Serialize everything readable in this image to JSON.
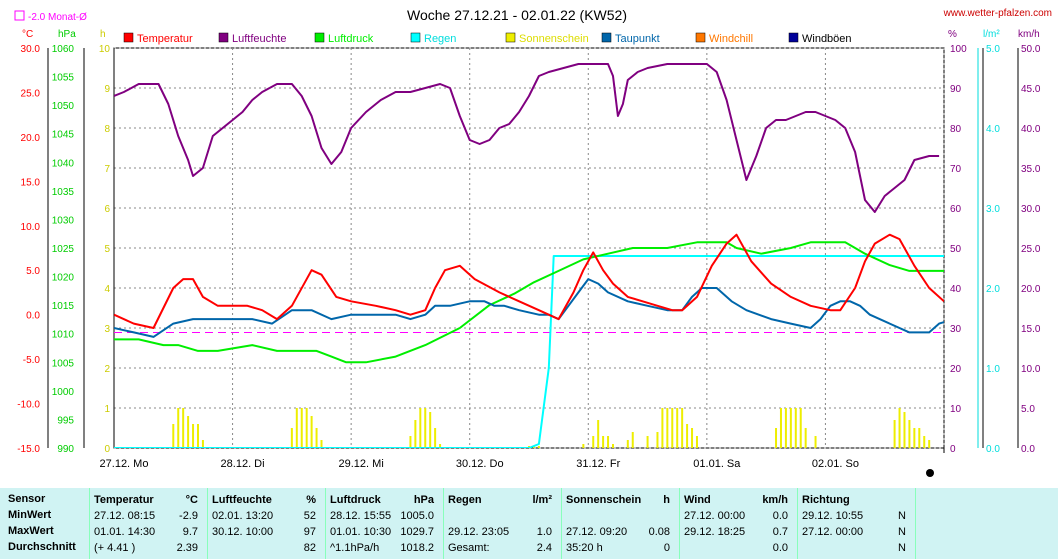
{
  "header": {
    "title": "Woche 27.12.21 - 02.01.22 (KW52)",
    "site": "www.wetter-pfalzen.com",
    "monat_label": "-2.0 Monat-Ø"
  },
  "colors": {
    "temperatur": "#ff0000",
    "luftfeuchte": "#800080",
    "luftdruck": "#00ee00",
    "regen": "#00ffff",
    "sonnenschein": "#eeee00",
    "taupunkt": "#0066aa",
    "windchill": "#ff7700",
    "windboeen": "#000099",
    "monat": "#ff00ff"
  },
  "chart_data": {
    "type": "line",
    "title": "Woche 27.12.21 - 02.01.22 (KW52)",
    "x_ticks": [
      "27.12. Mo",
      "28.12. Di",
      "29.12. Mi",
      "30.12. Do",
      "31.12. Fr",
      "01.01. Sa",
      "02.01. So"
    ],
    "x_range_hours": [
      0,
      168
    ],
    "legend": [
      {
        "key": "temperatur",
        "label": "Temperatur"
      },
      {
        "key": "luftfeuchte",
        "label": "Luftfeuchte"
      },
      {
        "key": "luftdruck",
        "label": "Luftdruck"
      },
      {
        "key": "regen",
        "label": "Regen"
      },
      {
        "key": "sonnenschein",
        "label": "Sonnenschein"
      },
      {
        "key": "taupunkt",
        "label": "Taupunkt"
      },
      {
        "key": "windchill",
        "label": "Windchill"
      },
      {
        "key": "windboeen",
        "label": "Windböen"
      }
    ],
    "axes": {
      "temp": {
        "unit": "°C",
        "range": [
          -15,
          30
        ],
        "ticks": [
          "30.0",
          "25.0",
          "20.0",
          "15.0",
          "10.0",
          "5.0",
          "0.0",
          "-5.0",
          "-10.0",
          "-15.0"
        ]
      },
      "pressure": {
        "unit": "hPa",
        "range": [
          990,
          1060
        ],
        "ticks": [
          "1060",
          "1055",
          "1050",
          "1045",
          "1040",
          "1035",
          "1030",
          "1025",
          "1020",
          "1015",
          "1010",
          "1005",
          "1000",
          "995",
          "990"
        ]
      },
      "sun": {
        "unit": "h",
        "range": [
          0,
          10
        ],
        "ticks": [
          "10",
          "9",
          "8",
          "7",
          "6",
          "5",
          "4",
          "3",
          "2",
          "1",
          "0"
        ]
      },
      "humidity": {
        "unit": "%",
        "range": [
          0,
          100
        ],
        "ticks": [
          "100",
          "90",
          "80",
          "70",
          "60",
          "50",
          "40",
          "30",
          "20",
          "10",
          "0"
        ]
      },
      "rain": {
        "unit": "l/m²",
        "range": [
          0,
          5
        ],
        "ticks": [
          "5.0",
          "4.0",
          "3.0",
          "2.0",
          "1.0",
          "0.0"
        ]
      },
      "wind": {
        "unit": "km/h",
        "range": [
          0,
          50
        ],
        "ticks": [
          "50.0",
          "45.0",
          "40.0",
          "35.0",
          "30.0",
          "25.0",
          "20.0",
          "15.0",
          "10.0",
          "5.0",
          "0.0"
        ]
      }
    },
    "monat_avg_temp": -2.0,
    "series": {
      "luftfeuchte": [
        [
          0,
          88
        ],
        [
          2,
          89
        ],
        [
          5,
          91
        ],
        [
          9,
          91
        ],
        [
          11,
          86
        ],
        [
          13,
          78
        ],
        [
          15,
          72
        ],
        [
          16,
          68
        ],
        [
          18,
          70
        ],
        [
          20,
          78
        ],
        [
          22,
          80
        ],
        [
          24,
          82
        ],
        [
          26,
          84
        ],
        [
          28,
          87
        ],
        [
          30,
          89
        ],
        [
          33,
          91
        ],
        [
          36,
          91
        ],
        [
          38,
          88
        ],
        [
          40,
          83
        ],
        [
          42,
          75
        ],
        [
          44,
          71
        ],
        [
          46,
          74
        ],
        [
          48,
          80
        ],
        [
          51,
          84
        ],
        [
          54,
          87
        ],
        [
          57,
          89
        ],
        [
          60,
          89
        ],
        [
          63,
          90
        ],
        [
          66,
          91
        ],
        [
          68,
          90
        ],
        [
          70,
          83
        ],
        [
          72,
          77
        ],
        [
          74,
          76
        ],
        [
          76,
          77
        ],
        [
          78,
          80
        ],
        [
          80,
          81
        ],
        [
          82,
          84
        ],
        [
          84,
          88
        ],
        [
          86,
          93
        ],
        [
          88,
          94
        ],
        [
          91,
          95
        ],
        [
          94,
          96
        ],
        [
          97,
          96
        ],
        [
          100,
          96
        ],
        [
          101,
          93
        ],
        [
          102,
          83
        ],
        [
          103,
          86
        ],
        [
          104,
          92
        ],
        [
          106,
          94
        ],
        [
          108,
          95
        ],
        [
          112,
          96
        ],
        [
          116,
          96
        ],
        [
          120,
          96
        ],
        [
          122,
          94
        ],
        [
          124,
          87
        ],
        [
          126,
          77
        ],
        [
          128,
          67
        ],
        [
          130,
          73
        ],
        [
          132,
          80
        ],
        [
          134,
          82
        ],
        [
          136,
          82
        ],
        [
          138,
          83
        ],
        [
          140,
          84
        ],
        [
          142,
          84
        ],
        [
          144,
          83
        ],
        [
          146,
          82
        ],
        [
          148,
          80
        ],
        [
          150,
          74
        ],
        [
          152,
          62
        ],
        [
          154,
          59
        ],
        [
          156,
          63
        ],
        [
          158,
          65
        ],
        [
          160,
          67
        ],
        [
          162,
          72
        ],
        [
          165,
          73
        ],
        [
          167,
          73
        ]
      ],
      "temperatur": [
        [
          0,
          0.0
        ],
        [
          4,
          -1.0
        ],
        [
          8,
          -1.5
        ],
        [
          12,
          3.0
        ],
        [
          14,
          4.0
        ],
        [
          16,
          4.0
        ],
        [
          18,
          2.0
        ],
        [
          21,
          1.0
        ],
        [
          27,
          1.0
        ],
        [
          30,
          0.5
        ],
        [
          33,
          -0.5
        ],
        [
          36,
          1.0
        ],
        [
          40,
          5.0
        ],
        [
          42,
          4.5
        ],
        [
          45,
          2.0
        ],
        [
          48,
          1.5
        ],
        [
          53,
          1.0
        ],
        [
          57,
          0.5
        ],
        [
          60,
          0.0
        ],
        [
          63,
          0.5
        ],
        [
          65,
          3.0
        ],
        [
          67,
          5.0
        ],
        [
          70,
          5.5
        ],
        [
          73,
          4.0
        ],
        [
          78,
          2.5
        ],
        [
          82,
          1.5
        ],
        [
          86,
          0.5
        ],
        [
          88,
          0.0
        ],
        [
          90,
          -0.5
        ],
        [
          93,
          2.5
        ],
        [
          95,
          5.0
        ],
        [
          97,
          7.0
        ],
        [
          99,
          5.0
        ],
        [
          101,
          3.5
        ],
        [
          104,
          2.0
        ],
        [
          107,
          1.5
        ],
        [
          110,
          1.0
        ],
        [
          113,
          0.5
        ],
        [
          115,
          0.5
        ],
        [
          118,
          2.0
        ],
        [
          121,
          5.5
        ],
        [
          124,
          8.0
        ],
        [
          126,
          9.0
        ],
        [
          129,
          6.0
        ],
        [
          133,
          3.5
        ],
        [
          137,
          2.0
        ],
        [
          141,
          1.0
        ],
        [
          145,
          0.5
        ],
        [
          147,
          0.5
        ],
        [
          150,
          3.0
        ],
        [
          152,
          6.0
        ],
        [
          154,
          8.0
        ],
        [
          157,
          9.0
        ],
        [
          159,
          8.5
        ],
        [
          162,
          5.5
        ],
        [
          165,
          3.0
        ],
        [
          168,
          1.5
        ]
      ],
      "luftdruck": [
        [
          0,
          1009
        ],
        [
          5,
          1009
        ],
        [
          10,
          1008
        ],
        [
          13,
          1008
        ],
        [
          17,
          1007
        ],
        [
          21,
          1007
        ],
        [
          28,
          1008
        ],
        [
          33,
          1007
        ],
        [
          41,
          1007
        ],
        [
          44,
          1006
        ],
        [
          47,
          1005
        ],
        [
          51,
          1005
        ],
        [
          57,
          1006
        ],
        [
          63,
          1008
        ],
        [
          70,
          1011
        ],
        [
          76,
          1015
        ],
        [
          81,
          1017
        ],
        [
          85,
          1019
        ],
        [
          90,
          1021
        ],
        [
          95,
          1023
        ],
        [
          100,
          1024
        ],
        [
          105,
          1025
        ],
        [
          112,
          1025
        ],
        [
          118,
          1026
        ],
        [
          124,
          1026
        ],
        [
          126,
          1025
        ],
        [
          131,
          1024
        ],
        [
          137,
          1025
        ],
        [
          141,
          1026
        ],
        [
          148,
          1026
        ],
        [
          152,
          1024
        ],
        [
          157,
          1022
        ],
        [
          161,
          1021
        ],
        [
          165,
          1021
        ],
        [
          168,
          1021
        ]
      ],
      "taupunkt": [
        [
          0,
          -1.5
        ],
        [
          4,
          -2.0
        ],
        [
          8,
          -2.5
        ],
        [
          12,
          -1.0
        ],
        [
          16,
          -0.5
        ],
        [
          20,
          -0.5
        ],
        [
          24,
          -0.5
        ],
        [
          28,
          -0.5
        ],
        [
          32,
          -1.0
        ],
        [
          36,
          0.5
        ],
        [
          40,
          0.5
        ],
        [
          44,
          -0.5
        ],
        [
          48,
          0.0
        ],
        [
          52,
          0.0
        ],
        [
          57,
          0.0
        ],
        [
          60,
          -0.5
        ],
        [
          63,
          0.0
        ],
        [
          65,
          1.0
        ],
        [
          68,
          1.0
        ],
        [
          72,
          1.5
        ],
        [
          75,
          1.5
        ],
        [
          77,
          1.0
        ],
        [
          79,
          1.0
        ],
        [
          82,
          0.5
        ],
        [
          86,
          0.0
        ],
        [
          88,
          0.0
        ],
        [
          90,
          -0.5
        ],
        [
          92,
          1.0
        ],
        [
          94,
          2.5
        ],
        [
          96,
          4.0
        ],
        [
          98,
          3.5
        ],
        [
          100,
          2.5
        ],
        [
          104,
          1.5
        ],
        [
          108,
          1.0
        ],
        [
          112,
          0.5
        ],
        [
          115,
          0.5
        ],
        [
          117,
          2.0
        ],
        [
          119,
          3.0
        ],
        [
          122,
          3.0
        ],
        [
          125,
          1.5
        ],
        [
          128,
          0.5
        ],
        [
          133,
          -0.5
        ],
        [
          137,
          -1.0
        ],
        [
          141,
          -1.5
        ],
        [
          143,
          -0.5
        ],
        [
          145,
          1.0
        ],
        [
          147,
          1.5
        ],
        [
          149,
          1.5
        ],
        [
          151,
          1.0
        ],
        [
          153,
          0.0
        ],
        [
          157,
          -1.0
        ],
        [
          161,
          -2.0
        ],
        [
          165,
          -2.0
        ],
        [
          167,
          -1.0
        ],
        [
          170,
          -0.5
        ],
        [
          172,
          -1.0
        ],
        [
          175,
          -1.5
        ]
      ],
      "regen": [
        [
          0,
          0
        ],
        [
          84,
          0
        ],
        [
          86,
          0.05
        ],
        [
          88,
          1.0
        ],
        [
          89,
          2.4
        ],
        [
          96,
          2.4
        ],
        [
          168,
          2.4
        ]
      ],
      "sonnenschein": [
        [
          12,
          0.6
        ],
        [
          13,
          1.0
        ],
        [
          14,
          1.0
        ],
        [
          15,
          0.8
        ],
        [
          16,
          0.6
        ],
        [
          17,
          0.6
        ],
        [
          18,
          0.2
        ],
        [
          36,
          0.5
        ],
        [
          37,
          1.0
        ],
        [
          38,
          1.0
        ],
        [
          39,
          1.0
        ],
        [
          40,
          0.8
        ],
        [
          41,
          0.5
        ],
        [
          42,
          0.2
        ],
        [
          60,
          0.3
        ],
        [
          61,
          0.7
        ],
        [
          62,
          1.0
        ],
        [
          63,
          1.0
        ],
        [
          64,
          0.9
        ],
        [
          65,
          0.5
        ],
        [
          66,
          0.1
        ],
        [
          84,
          0.05
        ],
        [
          85,
          0.05
        ],
        [
          86,
          0.05
        ],
        [
          95,
          0.1
        ],
        [
          97,
          0.3
        ],
        [
          98,
          0.7
        ],
        [
          99,
          0.3
        ],
        [
          100,
          0.3
        ],
        [
          101,
          0.1
        ],
        [
          104,
          0.2
        ],
        [
          105,
          0.4
        ],
        [
          108,
          0.3
        ],
        [
          110,
          0.4
        ],
        [
          111,
          1.0
        ],
        [
          112,
          1.0
        ],
        [
          113,
          1.0
        ],
        [
          114,
          1.0
        ],
        [
          115,
          1.0
        ],
        [
          116,
          0.6
        ],
        [
          117,
          0.5
        ],
        [
          118,
          0.3
        ],
        [
          134,
          0.5
        ],
        [
          135,
          1.0
        ],
        [
          136,
          1.0
        ],
        [
          137,
          1.0
        ],
        [
          138,
          1.0
        ],
        [
          139,
          1.0
        ],
        [
          140,
          0.5
        ],
        [
          142,
          0.3
        ],
        [
          158,
          0.7
        ],
        [
          159,
          1.0
        ],
        [
          160,
          0.9
        ],
        [
          161,
          0.7
        ],
        [
          162,
          0.5
        ],
        [
          163,
          0.5
        ],
        [
          164,
          0.3
        ],
        [
          165,
          0.2
        ]
      ]
    }
  },
  "table": {
    "col_sensor": {
      "header": "Sensor",
      "row1": "MinWert",
      "row2": "MaxWert",
      "row3": "Durchschnitt"
    },
    "col_temp": {
      "header": "Temperatur",
      "unit": "°C",
      "row1_time": "27.12.  08:15",
      "row1_val": "-2.9",
      "row2_time": "01.01.  14:30",
      "row2_val": "9.7",
      "row3_time": "(+ 4.41 )",
      "row3_val": "2.39"
    },
    "col_hum": {
      "header": "Luftfeuchte",
      "unit": "%",
      "row1_time": "02.01.  13:20",
      "row1_val": "52",
      "row2_time": "30.12.  10:00",
      "row2_val": "97",
      "row3_time": "",
      "row3_val": "82"
    },
    "col_press": {
      "header": "Luftdruck",
      "unit": "hPa",
      "row1_time": "28.12.  15:55",
      "row1_val": "1005.0",
      "row2_time": "01.01.  10:30",
      "row2_val": "1029.7",
      "row3_time": "^1.1hPa/h",
      "row3_val": "1018.2"
    },
    "col_rain": {
      "header": "Regen",
      "unit": "l/m²",
      "row1_time": "",
      "row1_val": "",
      "row2_time": "29.12.  23:05",
      "row2_val": "1.0",
      "row3_time": "Gesamt:",
      "row3_val": "2.4"
    },
    "col_sun": {
      "header": "Sonnenschein",
      "unit": "h",
      "row1_time": "",
      "row1_val": "",
      "row2_time": "27.12.  09:20",
      "row2_val": "0.08",
      "row3_time": "35:20 h",
      "row3_val": "0"
    },
    "col_wind": {
      "header": "Wind",
      "unit": "km/h",
      "row1_time": "27.12.  00:00",
      "row1_val": "0.0",
      "row2_time": "29.12.  18:25",
      "row2_val": "0.7",
      "row3_time": "",
      "row3_val": "0.0"
    },
    "col_dir": {
      "header": "Richtung",
      "row1_time": "29.12.  10:55",
      "row1_val": "N",
      "row2_time": "27.12.  00:00",
      "row2_val": "N",
      "row3_val": "N"
    }
  }
}
